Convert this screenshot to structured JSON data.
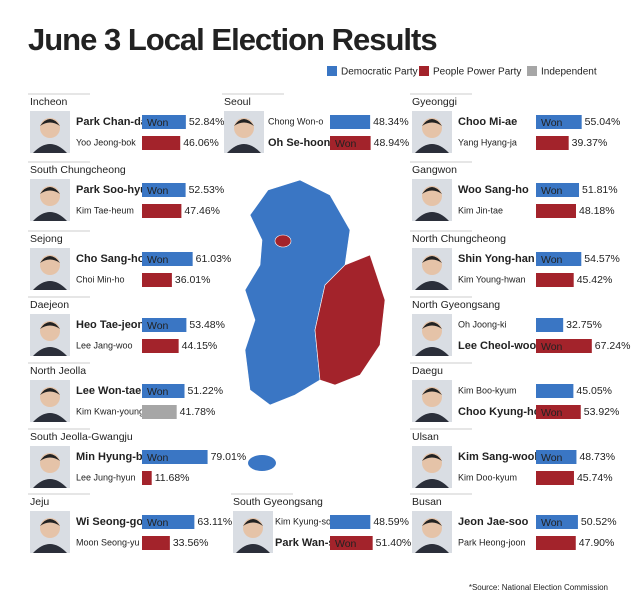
{
  "title": "June 3 Local Election Results",
  "legend": [
    {
      "name": "Democratic Party",
      "color": "#3a76c4"
    },
    {
      "name": "People Power Party",
      "color": "#a3232b"
    },
    {
      "name": "Independent",
      "color": "#a6a6a6"
    }
  ],
  "won_label": "Won",
  "regions": [
    {
      "name": "Incheon",
      "candidates": [
        {
          "name": "Park Chan-dae",
          "color": "#3a76c4",
          "value": 52.84,
          "value_label": "52.84%"
        },
        {
          "name": "Yoo Jeong-bok",
          "color": "#a3232b",
          "value": 46.06,
          "value_label": "46.06%"
        }
      ]
    },
    {
      "name": "South Chungcheong",
      "candidates": [
        {
          "name": "Park Soo-hyun",
          "color": "#3a76c4",
          "value": 52.53,
          "value_label": "52.53%"
        },
        {
          "name": "Kim Tae-heum",
          "color": "#a3232b",
          "value": 47.46,
          "value_label": "47.46%"
        }
      ]
    },
    {
      "name": "Sejong",
      "candidates": [
        {
          "name": "Cho Sang-ho",
          "color": "#3a76c4",
          "value": 61.03,
          "value_label": "61.03%"
        },
        {
          "name": "Choi Min-ho",
          "color": "#a3232b",
          "value": 36.01,
          "value_label": "36.01%"
        }
      ]
    },
    {
      "name": "Daejeon",
      "candidates": [
        {
          "name": "Heo Tae-jeong",
          "color": "#3a76c4",
          "value": 53.48,
          "value_label": "53.48%"
        },
        {
          "name": "Lee Jang-woo",
          "color": "#a3232b",
          "value": 44.15,
          "value_label": "44.15%"
        }
      ]
    },
    {
      "name": "North Jeolla",
      "candidates": [
        {
          "name": "Lee Won-taek",
          "color": "#3a76c4",
          "value": 51.22,
          "value_label": "51.22%"
        },
        {
          "name": "Kim Kwan-young",
          "color": "#a6a6a6",
          "value": 41.78,
          "value_label": "41.78%"
        }
      ]
    },
    {
      "name": "South Jeolla-Gwangju",
      "candidates": [
        {
          "name": "Min Hyung-bae",
          "color": "#3a76c4",
          "value": 79.01,
          "value_label": "79.01%"
        },
        {
          "name": "Lee Jung-hyun",
          "color": "#a3232b",
          "value": 11.68,
          "value_label": "11.68%"
        }
      ]
    },
    {
      "name": "Jeju",
      "candidates": [
        {
          "name": "Wi Seong-gon",
          "color": "#3a76c4",
          "value": 63.11,
          "value_label": "63.11%"
        },
        {
          "name": "Moon Seong-yu",
          "color": "#a3232b",
          "value": 33.56,
          "value_label": "33.56%"
        }
      ]
    },
    {
      "name": "Seoul",
      "candidates": [
        {
          "name": "Chong Won-o",
          "color": "#3a76c4",
          "value": 48.34,
          "value_label": "48.34%"
        },
        {
          "name": "Oh Se-hoon",
          "color": "#a3232b",
          "value": 48.94,
          "value_label": "48.94%"
        }
      ]
    },
    {
      "name": "South Gyeongsang",
      "candidates": [
        {
          "name": "Kim Kyung-soo",
          "color": "#3a76c4",
          "value": 48.59,
          "value_label": "48.59%"
        },
        {
          "name": "Park Wan-soo",
          "color": "#a3232b",
          "value": 51.4,
          "value_label": "51.40%"
        }
      ]
    },
    {
      "name": "Gyeonggi",
      "candidates": [
        {
          "name": "Choo Mi-ae",
          "color": "#3a76c4",
          "value": 55.04,
          "value_label": "55.04%"
        },
        {
          "name": "Yang Hyang-ja",
          "color": "#a3232b",
          "value": 39.37,
          "value_label": "39.37%"
        }
      ]
    },
    {
      "name": "Gangwon",
      "candidates": [
        {
          "name": "Woo Sang-ho",
          "color": "#3a76c4",
          "value": 51.81,
          "value_label": "51.81%"
        },
        {
          "name": "Kim Jin-tae",
          "color": "#a3232b",
          "value": 48.18,
          "value_label": "48.18%"
        }
      ]
    },
    {
      "name": "North Chungcheong",
      "candidates": [
        {
          "name": "Shin Yong-han",
          "color": "#3a76c4",
          "value": 54.57,
          "value_label": "54.57%"
        },
        {
          "name": "Kim Young-hwan",
          "color": "#a3232b",
          "value": 45.42,
          "value_label": "45.42%"
        }
      ]
    },
    {
      "name": "North Gyeongsang",
      "candidates": [
        {
          "name": "Oh Joong-ki",
          "color": "#3a76c4",
          "value": 32.75,
          "value_label": "32.75%"
        },
        {
          "name": "Lee Cheol-woo",
          "color": "#a3232b",
          "value": 67.24,
          "value_label": "67.24%"
        }
      ]
    },
    {
      "name": "Daegu",
      "candidates": [
        {
          "name": "Kim Boo-kyum",
          "color": "#3a76c4",
          "value": 45.05,
          "value_label": "45.05%"
        },
        {
          "name": "Choo Kyung-ho",
          "color": "#a3232b",
          "value": 53.92,
          "value_label": "53.92%"
        }
      ]
    },
    {
      "name": "Ulsan",
      "candidates": [
        {
          "name": "Kim Sang-wook",
          "color": "#3a76c4",
          "value": 48.73,
          "value_label": "48.73%"
        },
        {
          "name": "Kim Doo-kyum",
          "color": "#a3232b",
          "value": 45.74,
          "value_label": "45.74%"
        }
      ]
    },
    {
      "name": "Busan",
      "candidates": [
        {
          "name": "Jeon Jae-soo",
          "color": "#3a76c4",
          "value": 50.52,
          "value_label": "50.52%"
        },
        {
          "name": "Park Heong-joon",
          "color": "#a3232b",
          "value": 47.9,
          "value_label": "47.90%"
        }
      ]
    }
  ],
  "source": "*Source: National Election Commission"
}
